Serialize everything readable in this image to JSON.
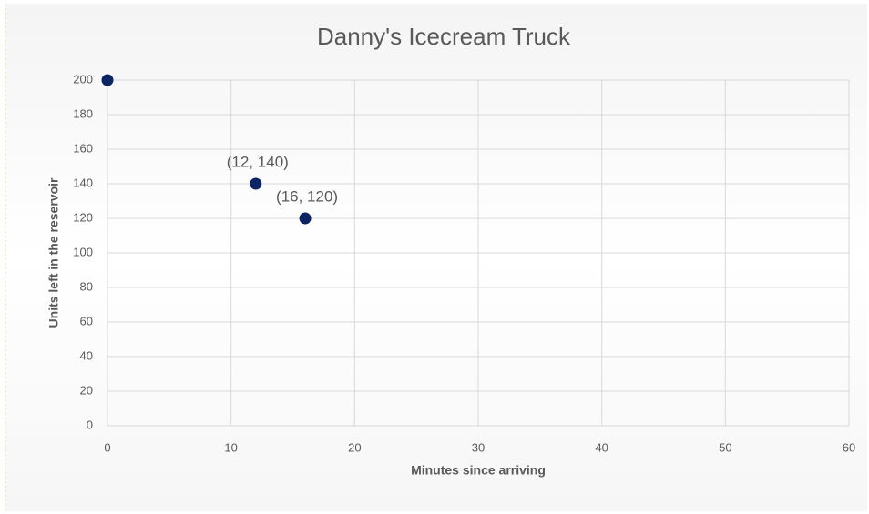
{
  "chart_data": {
    "type": "scatter",
    "title": "Danny's Icecream Truck",
    "x_label": "Minutes since arriving",
    "y_label": "Units left in the reservoir",
    "series": [
      {
        "color": "#0d2463",
        "x": [
          0,
          12,
          16
        ],
        "values": [
          200,
          140,
          120
        ],
        "value_labels": [
          null,
          "(12, 140)",
          "(16, 120)"
        ]
      }
    ],
    "xlim": [
      0,
      60
    ],
    "xticks": [
      0,
      10,
      20,
      30,
      40,
      50,
      60
    ],
    "ylim": [
      0,
      200
    ],
    "yticks": [
      0,
      20,
      40,
      60,
      80,
      100,
      120,
      140,
      160,
      180,
      200
    ],
    "grid": true
  }
}
